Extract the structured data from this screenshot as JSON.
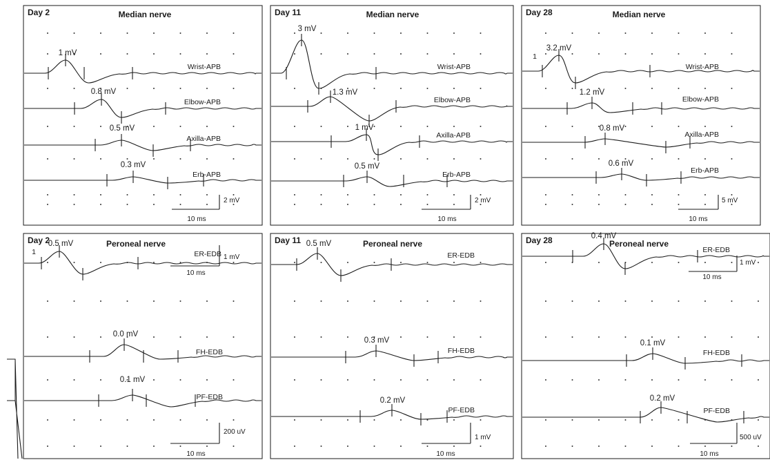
{
  "chart_data": [
    {
      "type": "line",
      "day": "Day 2",
      "title": "Median nerve",
      "scale": {
        "time": "10 ms",
        "amplitude": "2 mV"
      },
      "series": [
        {
          "name": "Wrist-APB",
          "amplitude_label": "1 mV",
          "amplitude_mV": 1.0,
          "onset_marker": ""
        },
        {
          "name": "Elbow-APB",
          "amplitude_label": "0.8 mV",
          "amplitude_mV": 0.8
        },
        {
          "name": "Axilla-APB",
          "amplitude_label": "0.5 mV",
          "amplitude_mV": 0.5
        },
        {
          "name": "Erb-APB",
          "amplitude_label": "0.3 mV",
          "amplitude_mV": 0.3
        }
      ]
    },
    {
      "type": "line",
      "day": "Day 11",
      "title": "Median nerve",
      "scale": {
        "time": "10 ms",
        "amplitude": "2 mV"
      },
      "series": [
        {
          "name": "Wrist-APB",
          "amplitude_label": "3 mV",
          "amplitude_mV": 3.0
        },
        {
          "name": "Elbow-APB",
          "amplitude_label": "1.3 mV",
          "amplitude_mV": 1.3
        },
        {
          "name": "Axilla-APB",
          "amplitude_label": "1 mV",
          "amplitude_mV": 1.0
        },
        {
          "name": "Erb-APB",
          "amplitude_label": "0.5 mV",
          "amplitude_mV": 0.5
        }
      ]
    },
    {
      "type": "line",
      "day": "Day 28",
      "title": "Median nerve",
      "scale": {
        "time": "10 ms",
        "amplitude": "5 mV"
      },
      "series": [
        {
          "name": "Wrist-APB",
          "amplitude_label": "3.2 mV",
          "amplitude_mV": 3.2,
          "onset_marker": "1"
        },
        {
          "name": "Elbow-APB",
          "amplitude_label": "1.2 mV",
          "amplitude_mV": 1.2
        },
        {
          "name": "Axilla-APB",
          "amplitude_label": "0.8 mV",
          "amplitude_mV": 0.8
        },
        {
          "name": "Erb-APB",
          "amplitude_label": "0.6 mV",
          "amplitude_mV": 0.6
        }
      ]
    },
    {
      "type": "line",
      "day": "Day 2",
      "title": "Peroneal nerve",
      "scale_top": {
        "time": "10 ms",
        "amplitude": "1 mV"
      },
      "scale": {
        "time": "10 ms",
        "amplitude": "200 uV"
      },
      "series": [
        {
          "name": "ER-EDB",
          "amplitude_label": "0.5 mV",
          "amplitude_mV": 0.5,
          "onset_marker": "1"
        },
        {
          "name": "FH-EDB",
          "amplitude_label": "0.0 mV",
          "amplitude_mV": 0.0
        },
        {
          "name": "PF-EDB",
          "amplitude_label": "0.1 mV",
          "amplitude_mV": 0.1
        }
      ]
    },
    {
      "type": "line",
      "day": "Day 11",
      "title": "Peroneal nerve",
      "scale": {
        "time": "10 ms",
        "amplitude": "1 mV"
      },
      "series": [
        {
          "name": "ER-EDB",
          "amplitude_label": "0.5 mV",
          "amplitude_mV": 0.5
        },
        {
          "name": "FH-EDB",
          "amplitude_label": "0.3 mV",
          "amplitude_mV": 0.3
        },
        {
          "name": "PF-EDB",
          "amplitude_label": "0.2 mV",
          "amplitude_mV": 0.2
        }
      ]
    },
    {
      "type": "line",
      "day": "Day 28",
      "title": "Peroneal nerve",
      "scale_top": {
        "time": "10 ms",
        "amplitude": "1 mV"
      },
      "scale": {
        "time": "10 ms",
        "amplitude": "500 uV"
      },
      "series": [
        {
          "name": "ER-EDB",
          "amplitude_label": "0.4 mV",
          "amplitude_mV": 0.4
        },
        {
          "name": "FH-EDB",
          "amplitude_label": "0.1 mV",
          "amplitude_mV": 0.1
        },
        {
          "name": "PF-EDB",
          "amplitude_label": "0.2 mV",
          "amplitude_mV": 0.2
        }
      ]
    }
  ]
}
